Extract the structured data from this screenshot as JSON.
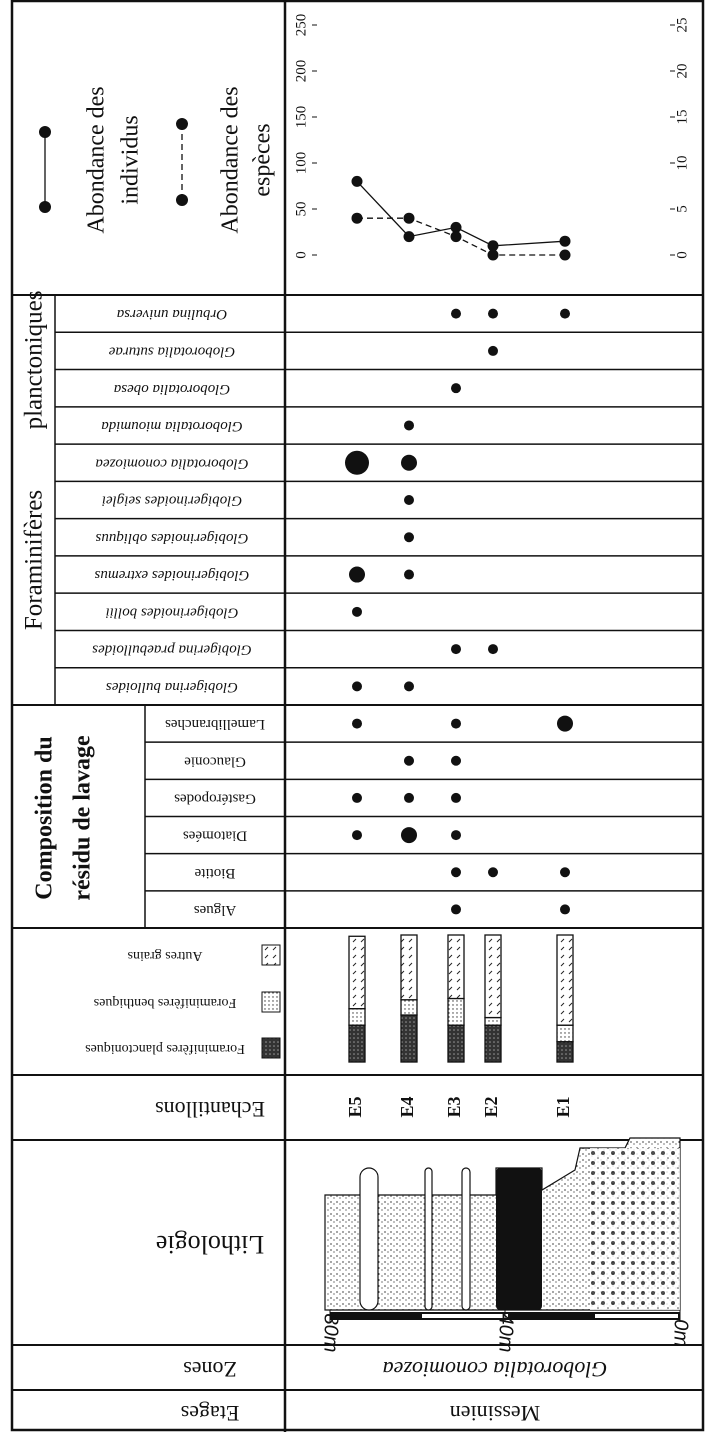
{
  "chart_legend": {
    "individus": [
      "Abondance des",
      "individus"
    ],
    "especes": [
      "Abondance des",
      "espèces"
    ]
  },
  "abundance_chart": {
    "type": "line",
    "series": [
      {
        "values": [
          80,
          20,
          30,
          10,
          15
        ],
        "style": "solid",
        "color": "#111"
      },
      {
        "values": [
          4,
          4,
          2,
          0,
          0
        ],
        "style": "dashed",
        "color": "#111",
        "axis": "y2"
      }
    ],
    "ylim": [
      0,
      250
    ],
    "yticks": [
      0,
      50,
      100,
      150,
      200,
      250
    ],
    "y2lim": [
      0,
      25
    ],
    "y2ticks": [
      0,
      5,
      10,
      15,
      20,
      25
    ]
  },
  "foraminiferes": {
    "title": [
      "Foraminifères",
      "planctoniques"
    ],
    "rows": [
      {
        "name": "Orbulina universa",
        "presence": [
          0,
          0,
          1,
          1,
          1
        ]
      },
      {
        "name": "Globorotalia suturae",
        "presence": [
          0,
          0,
          0,
          1,
          0
        ]
      },
      {
        "name": "Globorotalia obesa",
        "presence": [
          0,
          0,
          1,
          0,
          0
        ]
      },
      {
        "name": "Globorotalia mioumida",
        "presence": [
          0,
          1,
          0,
          0,
          0
        ]
      },
      {
        "name": "Globorotalia conomiozea",
        "presence": [
          3,
          2,
          0,
          0,
          0
        ]
      },
      {
        "name": "Globigerinoides seiglei",
        "presence": [
          0,
          1,
          0,
          0,
          0
        ]
      },
      {
        "name": "Globigerinoides obliquus",
        "presence": [
          0,
          1,
          0,
          0,
          0
        ]
      },
      {
        "name": "Globigerinoides extremus",
        "presence": [
          2,
          1,
          0,
          0,
          0
        ]
      },
      {
        "name": "Globigerinoides bollii",
        "presence": [
          1,
          0,
          0,
          0,
          0
        ]
      },
      {
        "name": "Globigerina praebulloides",
        "presence": [
          0,
          0,
          1,
          1,
          0
        ]
      },
      {
        "name": "Globigerina bulloides",
        "presence": [
          1,
          1,
          0,
          0,
          0
        ]
      }
    ]
  },
  "composition": {
    "title": [
      "Composition du",
      "résidu de lavage"
    ],
    "rows": [
      {
        "name": "Lamellibranches",
        "presence": [
          1,
          0,
          1,
          0,
          2
        ]
      },
      {
        "name": "Glauconie",
        "presence": [
          0,
          1,
          1,
          0,
          0
        ]
      },
      {
        "name": "Gastéropodes",
        "presence": [
          1,
          1,
          1,
          0,
          0
        ]
      },
      {
        "name": "Diatomées",
        "presence": [
          1,
          2,
          1,
          0,
          0
        ]
      },
      {
        "name": "Biotite",
        "presence": [
          0,
          0,
          1,
          1,
          1
        ]
      },
      {
        "name": "Algues",
        "presence": [
          0,
          0,
          1,
          0,
          1
        ]
      }
    ]
  },
  "granulometrie": {
    "legend": [
      "Autres grains",
      "Foraminifères benthiques",
      "Foraminifères planctoniques"
    ],
    "autres": [
      57,
      51,
      50,
      65,
      71
    ],
    "benthiques": [
      13,
      12,
      21,
      6,
      13
    ],
    "planctoniques": [
      29,
      37,
      29,
      29,
      16
    ]
  },
  "echantillons": {
    "header": "Echantillons",
    "samples": [
      "E5",
      "E4",
      "E3",
      "E2",
      "E1"
    ]
  },
  "lithologie": {
    "header": "Lithologie",
    "scale_ticks": [
      {
        "value": 80,
        "label": "80m"
      },
      {
        "value": 40,
        "label": "40m"
      },
      {
        "value": 0,
        "label": "0m"
      }
    ]
  },
  "zones": {
    "header": "Zones",
    "value": "Globorotalia conomiozea"
  },
  "etages": {
    "header": "Etages",
    "value": "Messinien"
  }
}
